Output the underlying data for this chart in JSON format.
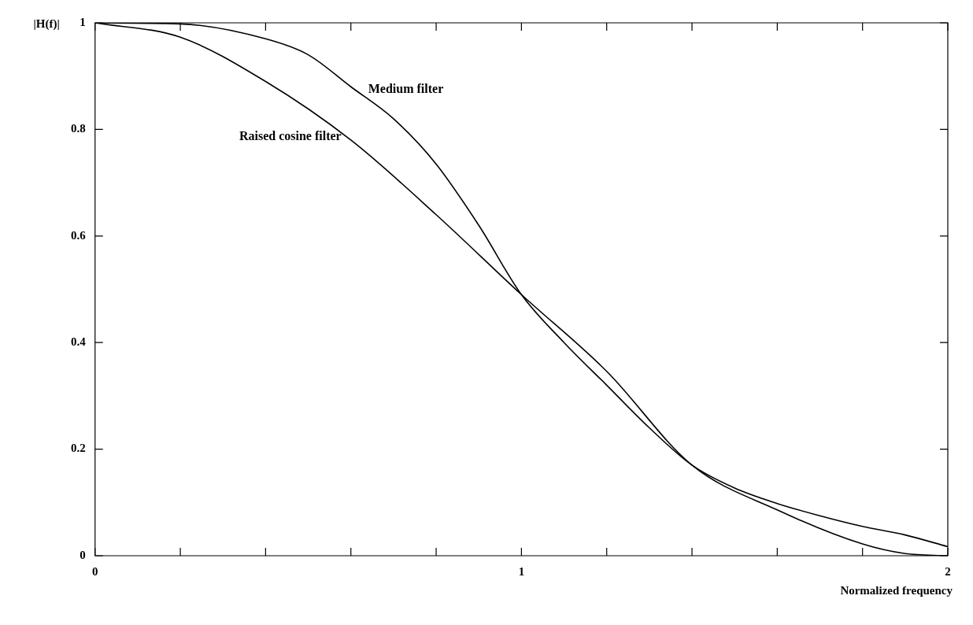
{
  "chart_data": {
    "type": "line",
    "xlabel": "Normalized frequency",
    "ylabel": "|H(f)|",
    "xlim": [
      0,
      2
    ],
    "ylim": [
      0,
      1
    ],
    "xticks": [
      0,
      {
        "value": 0.2,
        "label": null
      },
      {
        "value": 0.4,
        "label": null
      },
      {
        "value": 0.6,
        "label": null
      },
      {
        "value": 0.8,
        "label": null
      },
      1,
      {
        "value": 1.2,
        "label": null
      },
      {
        "value": 1.4,
        "label": null
      },
      {
        "value": 1.6,
        "label": null
      },
      {
        "value": 1.8,
        "label": null
      },
      2
    ],
    "yticks": [
      0,
      0.2,
      0.4,
      0.6,
      0.8,
      1
    ],
    "grid": false,
    "legend": false,
    "marker": "none",
    "line_style": "solid",
    "series": [
      {
        "name": "Medium filter",
        "color": "#000000",
        "x": [
          0,
          0.2,
          0.4,
          0.5,
          0.6,
          0.7,
          0.8,
          0.9,
          1.0,
          1.1,
          1.2,
          1.3,
          1.4,
          1.5,
          1.6,
          1.7,
          1.8,
          1.9,
          2.0
        ],
        "values": [
          1,
          0.998,
          0.97,
          0.94,
          0.88,
          0.82,
          0.735,
          0.62,
          0.49,
          0.4,
          0.32,
          0.24,
          0.17,
          0.127,
          0.098,
          0.075,
          0.055,
          0.039,
          0.017
        ]
      },
      {
        "name": "Raised cosine filter",
        "color": "#000000",
        "x": [
          0,
          0.2,
          0.4,
          0.6,
          0.8,
          1.0,
          1.2,
          1.4,
          1.6,
          1.8,
          1.9,
          2.0
        ],
        "values": [
          1,
          0.973,
          0.89,
          0.78,
          0.64,
          0.49,
          0.346,
          0.17,
          0.086,
          0.022,
          0.004,
          0
        ]
      }
    ]
  }
}
